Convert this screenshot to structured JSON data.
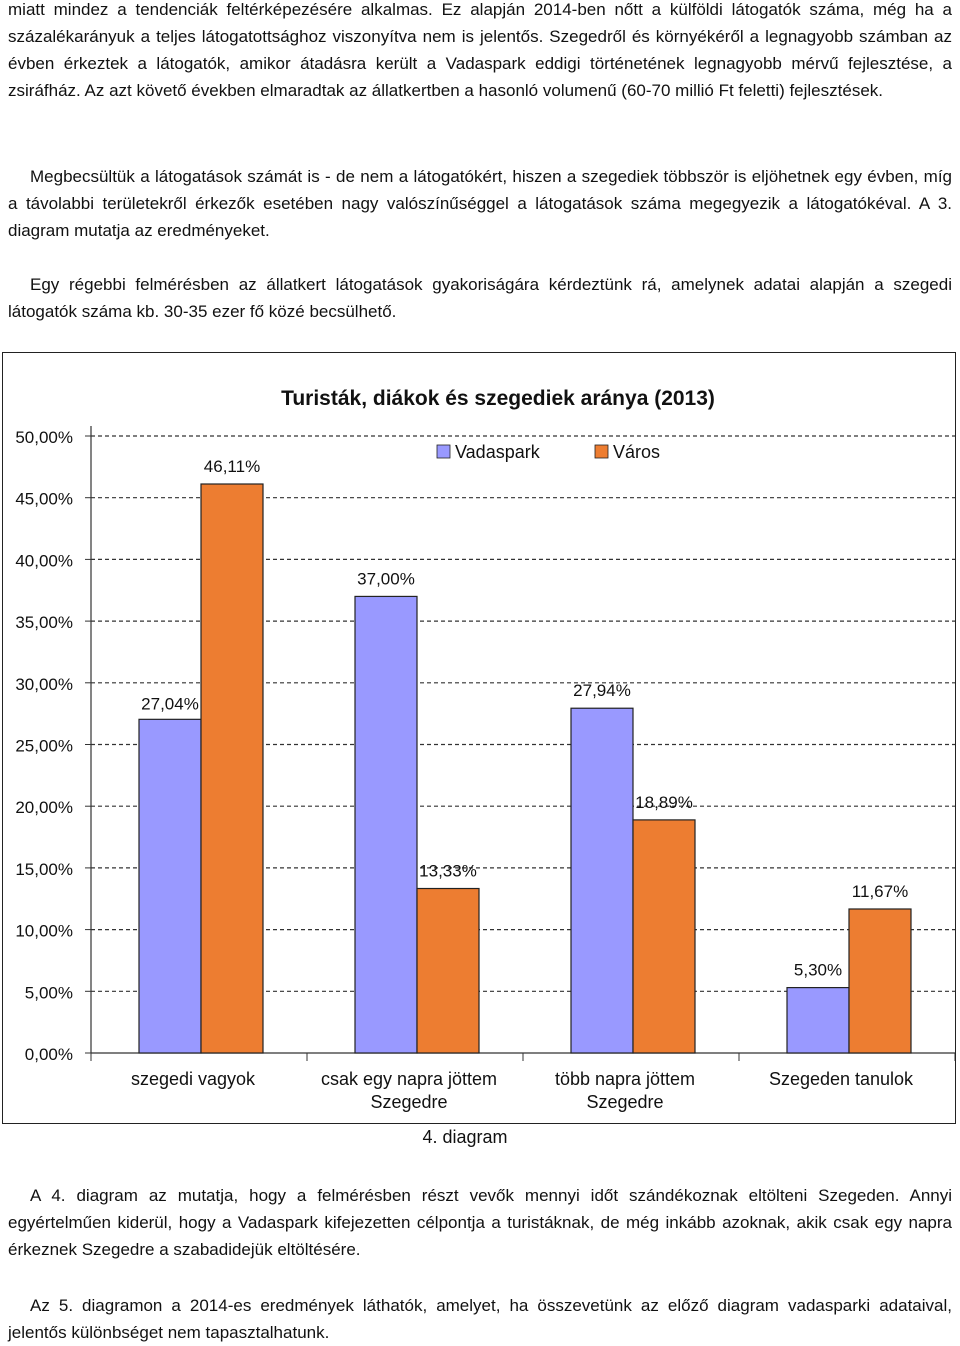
{
  "paragraphs": {
    "p1": "miatt mindez a tendenciák feltérképezésére alkalmas. Ez alapján 2014-ben nőtt a külföldi látogatók száma, még ha a százalékarányuk a teljes látogatottsághoz viszonyítva nem is jelentős. Szegedről és környékéről a legnagyobb számban az évben érkeztek a látogatók, amikor átadásra került a Vadaspark eddigi történetének legnagyobb mérvű fejlesztése, a zsiráfház. Az azt követő években elmaradtak az állatkertben a hasonló volumenű (60-70 millió Ft feletti) fejlesztések.",
    "p2": "Megbecsültük a látogatások számát is - de nem a látogatókért, hiszen a szegediek többször is eljöhetnek egy évben, míg a távolabbi területekről érkezők esetében nagy valószínűséggel a látogatások száma megegyezik a látogatókéval. A 3. diagram mutatja az eredményeket.",
    "p3": "Egy régebbi felmérésben az állatkert látogatások gyakoriságára kérdeztünk rá, amelynek adatai alapján a szegedi látogatók száma kb. 30-35 ezer fő közé becsülhető.",
    "p4": "A 4. diagram az mutatja, hogy a felmérésben részt vevők mennyi időt szándékoznak eltölteni Szegeden. Annyi egyértelműen kiderül, hogy a Vadaspark kifejezetten célpontja a turistáknak, de még inkább azoknak, akik csak egy napra érkeznek Szegedre a szabadidejük eltöltésére.",
    "p5": "Az 5. diagramon a 2014-es eredmények láthatók, amelyet, ha összevetünk az előző diagram vadasparki adataival, jelentős különbséget nem tapasztalhatunk."
  },
  "caption": "4. diagram",
  "colors": {
    "vadaspark": "#9999ff",
    "varos": "#ed7d31",
    "grid": "#333333"
  },
  "chart_data": {
    "type": "bar",
    "title": "Turisták, diákok és szegediek aránya (2013)",
    "categories": [
      [
        "szegedi vagyok"
      ],
      [
        "csak egy napra jöttem",
        "Szegedre"
      ],
      [
        "több napra jöttem",
        "Szegedre"
      ],
      [
        "Szegeden tanulok"
      ]
    ],
    "series": [
      {
        "name": "Vadaspark",
        "values": [
          27.04,
          37.0,
          27.94,
          5.3
        ],
        "labels": [
          "27,04%",
          "37,00%",
          "27,94%",
          "5,30%"
        ]
      },
      {
        "name": "Város",
        "values": [
          46.11,
          13.33,
          18.89,
          11.67
        ],
        "labels": [
          "46,11%",
          "13,33%",
          "18,89%",
          "11,67%"
        ]
      }
    ],
    "yticks": [
      "0,00%",
      "5,00%",
      "10,00%",
      "15,00%",
      "20,00%",
      "25,00%",
      "30,00%",
      "35,00%",
      "40,00%",
      "45,00%",
      "50,00%"
    ],
    "ylim": [
      0,
      50
    ],
    "grid": true,
    "legend": "top"
  }
}
